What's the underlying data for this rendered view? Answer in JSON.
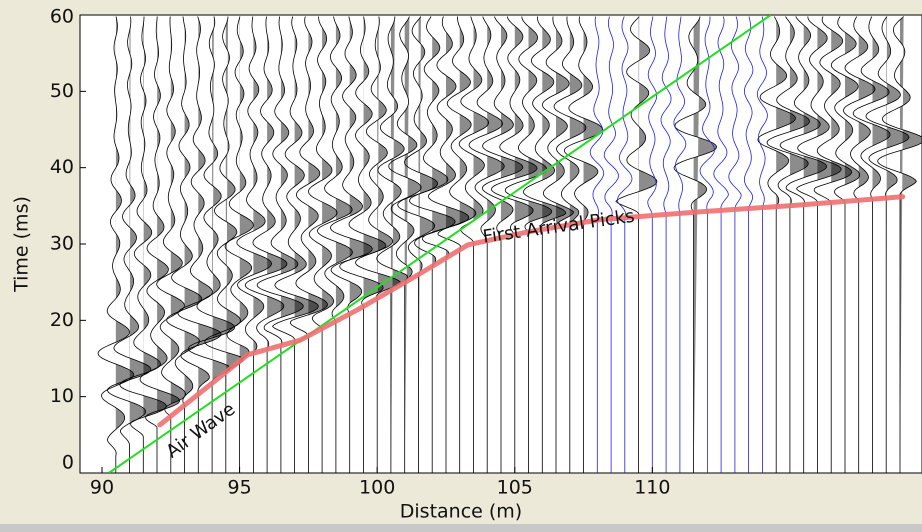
{
  "chart_data": {
    "type": "seismic-gather",
    "xlabel": "Distance (m)",
    "ylabel": "Time (ms)",
    "xlim": [
      89.2,
      119.8
    ],
    "xticks": [
      90,
      95,
      100,
      105,
      110
    ],
    "ylim": [
      0,
      60
    ],
    "yticks": [
      0,
      10,
      20,
      30,
      40,
      50,
      60
    ],
    "traces": {
      "color": "#000000",
      "x": [
        90.5,
        91,
        91.5,
        92,
        92.5,
        93,
        93.5,
        94,
        94.5,
        95,
        95.5,
        96,
        96.5,
        97,
        97.5,
        98,
        98.5,
        99,
        99.5,
        100,
        100.5,
        101,
        101.5,
        102,
        102.5,
        103,
        103.5,
        104,
        104.5,
        105,
        105.5,
        106,
        106.5,
        107,
        107.5,
        109.5,
        111.5,
        114.5,
        115,
        115.5,
        116,
        116.5,
        117,
        117.5,
        118,
        118.5,
        119
      ]
    },
    "flagged_traces": {
      "color": "#2020e0",
      "x": [
        108,
        108.5,
        109,
        110,
        110.5,
        111,
        112,
        112.5,
        113,
        113.5,
        114
      ]
    },
    "first_arrival": {
      "color": "#f07070",
      "x": [
        92.1,
        95.3,
        97.2,
        99.3,
        101.5,
        103.3,
        105.5,
        108.1,
        111.7,
        115.3,
        119.1
      ],
      "y": [
        6.3,
        15.5,
        17.4,
        21.4,
        26,
        29.9,
        31.6,
        33.2,
        34.2,
        35.1,
        36.2
      ]
    },
    "air_wave": {
      "color": "#22dd22",
      "x": [
        90.25,
        114.3
      ],
      "y": [
        0,
        60
      ]
    },
    "annotations": [
      {
        "text": "First Arrival Picks",
        "x": 106.6,
        "y": 32.2,
        "angle": -8
      },
      {
        "text": "Air Wave",
        "x": 93.6,
        "y": 5.5,
        "angle": -36
      }
    ]
  }
}
